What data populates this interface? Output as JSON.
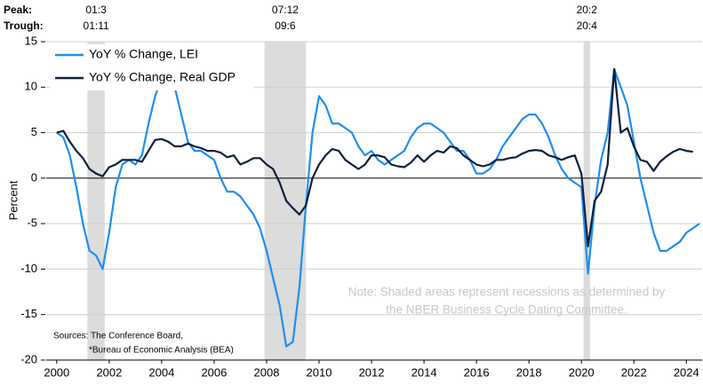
{
  "chart_data": {
    "type": "line",
    "y_label": "Percent",
    "peak_label": "Peak:",
    "trough_label": "Trough:",
    "note": [
      "Note: Shaded areas represent recessions as determined by",
      "the NBER Business Cycle Dating Committee."
    ],
    "sources": [
      "Sources: The Conference Board,",
      "*Bureau of Economic Analysis (BEA)"
    ],
    "legend": "top-left",
    "grid": true,
    "xlim": [
      1999.6,
      2024.6
    ],
    "xticks": [
      2000,
      2002,
      2004,
      2006,
      2008,
      2010,
      2012,
      2014,
      2016,
      2018,
      2020,
      2022,
      2024
    ],
    "ylim": [
      -20,
      15
    ],
    "yticks": [
      15,
      10,
      5,
      0,
      -5,
      -10,
      -15,
      -20
    ],
    "recessions": [
      {
        "start": 2001.17,
        "end": 2001.83,
        "peak": "01:3",
        "trough": "01:11"
      },
      {
        "start": 2007.92,
        "end": 2009.5,
        "peak": "07:12",
        "trough": "09:6"
      },
      {
        "start": 2020.08,
        "end": 2020.33,
        "peak": "20:2",
        "trough": "20:4"
      }
    ],
    "x": [
      2000,
      2000.25,
      2000.5,
      2000.75,
      2001,
      2001.25,
      2001.5,
      2001.75,
      2002,
      2002.25,
      2002.5,
      2002.75,
      2003,
      2003.25,
      2003.5,
      2003.75,
      2004,
      2004.25,
      2004.5,
      2004.75,
      2005,
      2005.25,
      2005.5,
      2005.75,
      2006,
      2006.25,
      2006.5,
      2006.75,
      2007,
      2007.25,
      2007.5,
      2007.75,
      2008,
      2008.25,
      2008.5,
      2008.75,
      2009,
      2009.25,
      2009.5,
      2009.75,
      2010,
      2010.25,
      2010.5,
      2010.75,
      2011,
      2011.25,
      2011.5,
      2011.75,
      2012,
      2012.25,
      2012.5,
      2012.75,
      2013,
      2013.25,
      2013.5,
      2013.75,
      2014,
      2014.25,
      2014.5,
      2014.75,
      2015,
      2015.25,
      2015.5,
      2015.75,
      2016,
      2016.25,
      2016.5,
      2016.75,
      2017,
      2017.25,
      2017.5,
      2017.75,
      2018,
      2018.25,
      2018.5,
      2018.75,
      2019,
      2019.25,
      2019.5,
      2019.75,
      2020,
      2020.25,
      2020.5,
      2020.75,
      2021,
      2021.25,
      2021.5,
      2021.75,
      2022,
      2022.25,
      2022.5,
      2022.75,
      2023,
      2023.25,
      2023.5,
      2023.75,
      2024,
      2024.25,
      2024.5
    ],
    "series": [
      {
        "name": "YoY % Change, LEI",
        "color": "#1e8ef0",
        "width": 2.2,
        "values": [
          5,
          4.5,
          2.5,
          -1,
          -5,
          -8,
          -8.5,
          -10,
          -6,
          -1,
          1.5,
          2,
          1.5,
          2.5,
          6,
          9,
          11,
          11,
          10,
          7,
          4,
          3,
          3,
          2.5,
          2,
          0,
          -1.5,
          -1.5,
          -2,
          -3,
          -4,
          -5.5,
          -8,
          -11,
          -14,
          -18.5,
          -18,
          -12,
          -3,
          5,
          9,
          8,
          6,
          6,
          5.5,
          5,
          3.5,
          2.5,
          3,
          2,
          1.5,
          2,
          2.5,
          3,
          4.5,
          5.5,
          6,
          6,
          5.5,
          5,
          4,
          3,
          3,
          2,
          0.5,
          0.5,
          1,
          2,
          3.5,
          4.5,
          5.5,
          6.5,
          7,
          7,
          6,
          4.5,
          2.5,
          1,
          0,
          -0.5,
          -1,
          -10.5,
          -3,
          2,
          5,
          12,
          10,
          8,
          4,
          0,
          -3,
          -6,
          -8,
          -8,
          -7.5,
          -7,
          -6,
          -5.5,
          -5
        ]
      },
      {
        "name": "YoY % Change, Real GDP",
        "color": "#0d1f3c",
        "width": 2.2,
        "values": [
          5,
          5.2,
          4,
          3,
          2.2,
          1,
          0.5,
          0.2,
          1.2,
          1.5,
          2,
          2,
          2,
          1.8,
          3,
          4.2,
          4.3,
          4,
          3.5,
          3.5,
          3.8,
          3.5,
          3.3,
          3,
          3,
          2.8,
          2.3,
          2.5,
          1.5,
          1.8,
          2.2,
          2.2,
          1.5,
          1,
          -0.5,
          -2.5,
          -3.3,
          -4,
          -3,
          0,
          1.5,
          2.5,
          3.2,
          3,
          2,
          1.5,
          1,
          1.5,
          2.5,
          2.5,
          2.3,
          1.5,
          1.3,
          1.2,
          1.7,
          2.5,
          1.8,
          2.5,
          3,
          2.8,
          3.5,
          3.3,
          2.5,
          2,
          1.5,
          1.3,
          1.5,
          2,
          2,
          2.2,
          2.3,
          2.7,
          3,
          3.1,
          3,
          2.5,
          2.3,
          2,
          2.3,
          2.5,
          0.5,
          -7.5,
          -2.5,
          -1.5,
          1.5,
          12,
          5,
          5.5,
          3.5,
          2,
          1.8,
          0.8,
          1.8,
          2.4,
          2.9,
          3.2,
          3,
          2.9,
          null
        ]
      }
    ]
  }
}
